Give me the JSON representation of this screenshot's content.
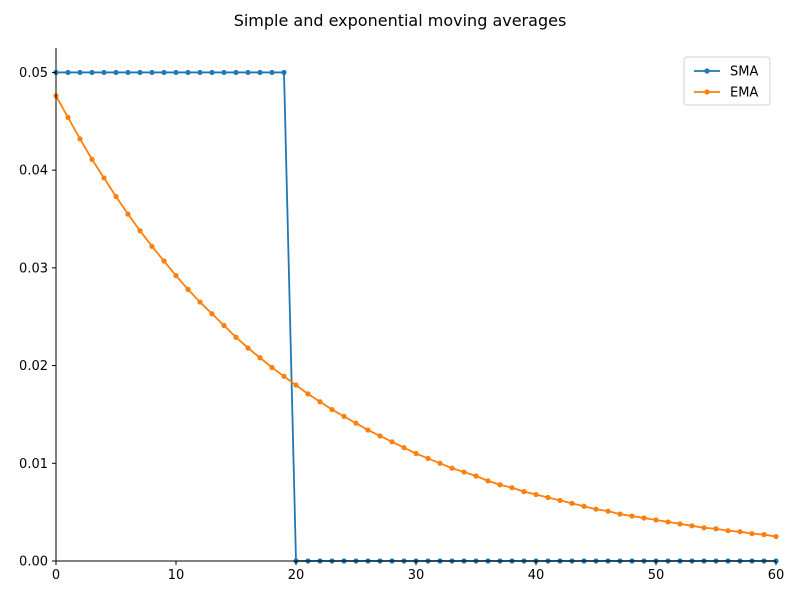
{
  "chart_data": {
    "type": "line",
    "title": "Simple and exponential moving averages",
    "xlabel": "",
    "ylabel": "",
    "xlim": [
      0,
      60
    ],
    "ylim": [
      0,
      0.0525
    ],
    "x_ticks": [
      0,
      10,
      20,
      30,
      40,
      50,
      60
    ],
    "x_tick_labels": [
      "0",
      "10",
      "20",
      "30",
      "40",
      "50",
      "60"
    ],
    "y_ticks": [
      0.0,
      0.01,
      0.02,
      0.03,
      0.04,
      0.05
    ],
    "y_tick_labels": [
      "0.00",
      "0.01",
      "0.02",
      "0.03",
      "0.04",
      "0.05"
    ],
    "grid": false,
    "legend_position": "top-right",
    "x": [
      0,
      1,
      2,
      3,
      4,
      5,
      6,
      7,
      8,
      9,
      10,
      11,
      12,
      13,
      14,
      15,
      16,
      17,
      18,
      19,
      20,
      21,
      22,
      23,
      24,
      25,
      26,
      27,
      28,
      29,
      30,
      31,
      32,
      33,
      34,
      35,
      36,
      37,
      38,
      39,
      40,
      41,
      42,
      43,
      44,
      45,
      46,
      47,
      48,
      49,
      50,
      51,
      52,
      53,
      54,
      55,
      56,
      57,
      58,
      59,
      60
    ],
    "series": [
      {
        "name": "SMA",
        "color": "#1f77b4",
        "values": [
          0.05,
          0.05,
          0.05,
          0.05,
          0.05,
          0.05,
          0.05,
          0.05,
          0.05,
          0.05,
          0.05,
          0.05,
          0.05,
          0.05,
          0.05,
          0.05,
          0.05,
          0.05,
          0.05,
          0.05,
          0,
          0,
          0,
          0,
          0,
          0,
          0,
          0,
          0,
          0,
          0,
          0,
          0,
          0,
          0,
          0,
          0,
          0,
          0,
          0,
          0,
          0,
          0,
          0,
          0,
          0,
          0,
          0,
          0,
          0,
          0,
          0,
          0,
          0,
          0,
          0,
          0,
          0,
          0,
          0,
          0
        ]
      },
      {
        "name": "EMA",
        "color": "#ff7f0e",
        "values": [
          0.0476,
          0.0454,
          0.0432,
          0.0411,
          0.0392,
          0.0373,
          0.0355,
          0.0338,
          0.0322,
          0.0307,
          0.0292,
          0.0278,
          0.0265,
          0.0253,
          0.0241,
          0.0229,
          0.0218,
          0.0208,
          0.0198,
          0.0189,
          0.018,
          0.0171,
          0.0163,
          0.0155,
          0.0148,
          0.0141,
          0.0134,
          0.0128,
          0.0122,
          0.0116,
          0.011,
          0.0105,
          0.01,
          0.0095,
          0.0091,
          0.0087,
          0.0082,
          0.0078,
          0.0075,
          0.0071,
          0.0068,
          0.0065,
          0.0062,
          0.0059,
          0.0056,
          0.0053,
          0.0051,
          0.0048,
          0.0046,
          0.0044,
          0.0042,
          0.004,
          0.0038,
          0.0036,
          0.0034,
          0.0033,
          0.0031,
          0.003,
          0.0028,
          0.0027,
          0.0025
        ]
      }
    ]
  }
}
